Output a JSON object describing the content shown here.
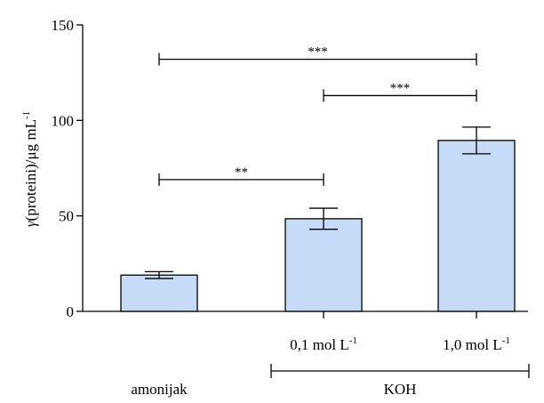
{
  "chart_data": {
    "type": "bar",
    "categories": [
      "amonijak",
      "0,1 mol L",
      "1,0 mol L"
    ],
    "category_superscripts": [
      "",
      "-1",
      "-1"
    ],
    "values": [
      19,
      48.5,
      89.5
    ],
    "errors": [
      1.8,
      5.5,
      7.0
    ],
    "ylabel": "(proteini)/μg mL",
    "ylabel_symbol": "γ",
    "ylabel_superscript": "-1",
    "ylim": [
      0,
      150
    ],
    "yticks": [
      0,
      50,
      100,
      150
    ],
    "group_label": "KOH",
    "group_categories": [
      1,
      2
    ],
    "bar_color": "#c6dbf7",
    "bar_edge_color": "#000000",
    "grid": false,
    "significance": [
      {
        "from": 0,
        "to": 1,
        "y": 69,
        "label": "**"
      },
      {
        "from": 1,
        "to": 2,
        "y": 113,
        "label": "***"
      },
      {
        "from": 0,
        "to": 2,
        "y": 132,
        "label": "***"
      }
    ]
  }
}
